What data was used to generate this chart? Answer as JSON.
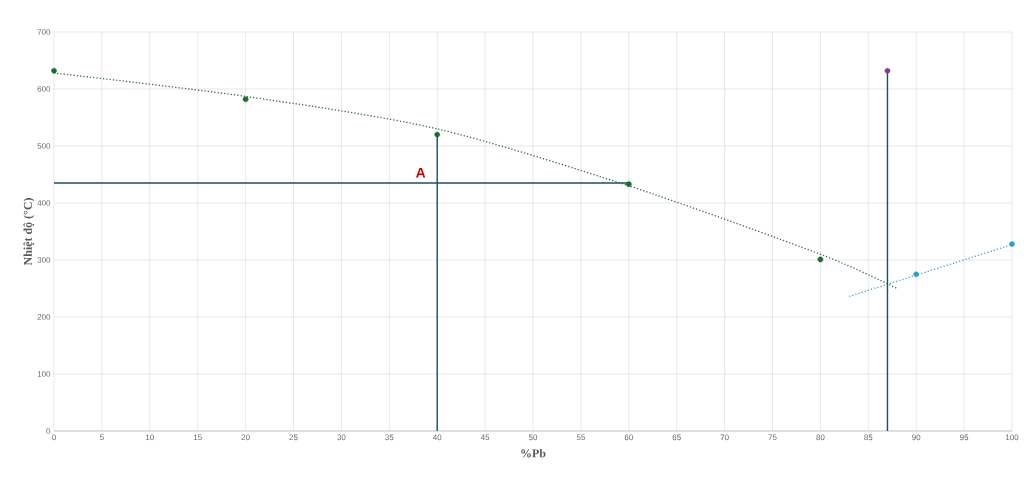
{
  "chart_data": {
    "type": "scatter",
    "xlabel": "%Pb",
    "ylabel": "Nhiệt độ (°C)",
    "xlim": [
      0,
      100
    ],
    "ylim": [
      0,
      700
    ],
    "xticks": [
      0,
      5,
      10,
      15,
      20,
      25,
      30,
      35,
      40,
      45,
      50,
      55,
      60,
      65,
      70,
      75,
      80,
      85,
      90,
      95,
      100
    ],
    "yticks": [
      0,
      100,
      200,
      300,
      400,
      500,
      600,
      700
    ],
    "grid": true,
    "series": [
      {
        "type": "line",
        "color": "#3b6e45",
        "line_style": "dotted",
        "marker": "none",
        "x": [
          0,
          20,
          40,
          60,
          80,
          88
        ],
        "values": [
          628,
          587,
          530,
          430,
          310,
          250
        ]
      },
      {
        "type": "line",
        "color": "#4aa3c8",
        "line_style": "dotted",
        "marker": "none",
        "x": [
          83,
          100
        ],
        "values": [
          236,
          327
        ]
      },
      {
        "type": "line",
        "color": "#1f4e63",
        "line_style": "solid",
        "marker": "none",
        "x": [
          40,
          40
        ],
        "values": [
          0,
          520
        ]
      },
      {
        "type": "line",
        "color": "#1f4e63",
        "line_style": "solid",
        "marker": "none",
        "x": [
          0,
          60
        ],
        "values": [
          435,
          435
        ]
      },
      {
        "type": "line",
        "color": "#1f4e63",
        "line_style": "solid",
        "marker": "none",
        "x": [
          87,
          87
        ],
        "values": [
          0,
          632
        ]
      },
      {
        "color": "#1e6b30",
        "marker": "circle",
        "x": [
          0,
          20,
          40,
          60,
          80
        ],
        "values": [
          632,
          582,
          520,
          433,
          301
        ]
      },
      {
        "color": "#2a9fd0",
        "marker": "circle",
        "x": [
          90,
          100
        ],
        "values": [
          275,
          328
        ]
      },
      {
        "color": "#7b3f8e",
        "marker": "circle",
        "x": [
          87
        ],
        "values": [
          632
        ]
      }
    ],
    "annotations": [
      {
        "text": "A",
        "x": 40,
        "y": 435
      }
    ]
  }
}
